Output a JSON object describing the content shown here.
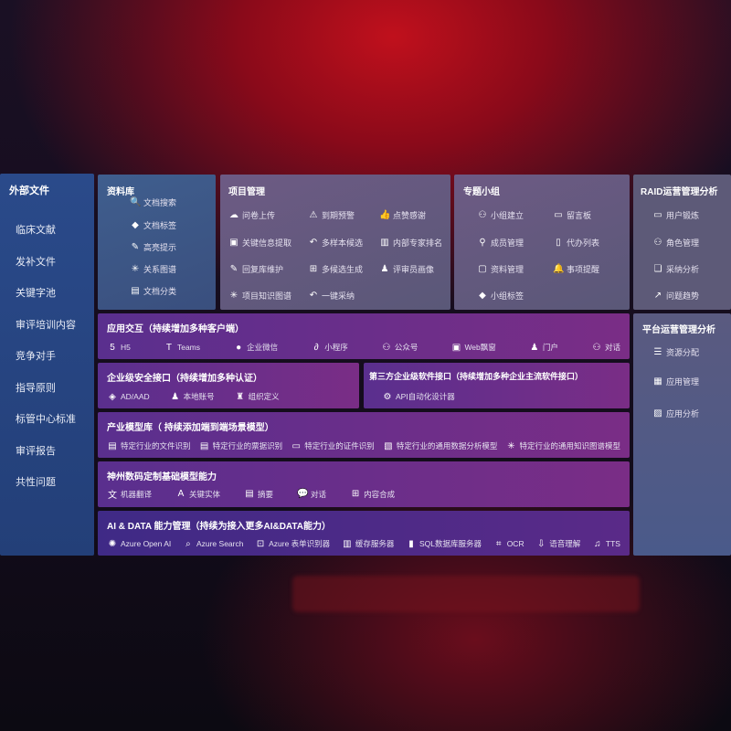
{
  "sidebar": {
    "title": "外部文件",
    "items": [
      "临床文献",
      "发补文件",
      "关键字池",
      "审评培训内容",
      "竞争对手",
      "指导原则",
      "标管中心标准",
      "审评报告",
      "共性问题"
    ]
  },
  "library": {
    "title": "资料库",
    "items": [
      {
        "icon": "file-search-icon",
        "label": "文档搜索"
      },
      {
        "icon": "tag-icon",
        "label": "文档标签"
      },
      {
        "icon": "pen-icon",
        "label": "高亮提示"
      },
      {
        "icon": "graph-icon",
        "label": "关系图谱"
      },
      {
        "icon": "document-icon",
        "label": "文档分类"
      }
    ]
  },
  "project": {
    "title": "项目管理",
    "items": [
      {
        "icon": "cloud-upload-icon",
        "label": "问卷上传"
      },
      {
        "icon": "alarm-icon",
        "label": "到期预警"
      },
      {
        "icon": "thumbs-up-icon",
        "label": "点赞感谢"
      },
      {
        "icon": "window-icon",
        "label": "关键信息提取"
      },
      {
        "icon": "reply-icon",
        "label": "多样本候选"
      },
      {
        "icon": "ranking-icon",
        "label": "内部专家排名"
      },
      {
        "icon": "pen-icon",
        "label": "回复库维护"
      },
      {
        "icon": "puzzle-icon",
        "label": "多候选生成"
      },
      {
        "icon": "user-icon",
        "label": "评审员画像"
      },
      {
        "icon": "graph-icon",
        "label": "项目知识图谱"
      },
      {
        "icon": "reply-icon",
        "label": "一键采纳"
      }
    ]
  },
  "group": {
    "title": "专题小组",
    "items": [
      {
        "icon": "group-icon",
        "label": "小组建立"
      },
      {
        "icon": "bbs-icon",
        "label": "留言板"
      },
      {
        "icon": "add-user-icon",
        "label": "成员管理"
      },
      {
        "icon": "clipboard-icon",
        "label": "代办列表"
      },
      {
        "icon": "folder-icon",
        "label": "资料管理"
      },
      {
        "icon": "bell-icon",
        "label": "事项提醒"
      },
      {
        "icon": "tag-icon",
        "label": "小组标签"
      }
    ]
  },
  "raid": {
    "title": "RAID运营管理分析",
    "items": [
      {
        "icon": "id-card-icon",
        "label": "用户锻炼"
      },
      {
        "icon": "group-icon",
        "label": "角色管理"
      },
      {
        "icon": "qa-icon",
        "label": "采纳分析"
      },
      {
        "icon": "trend-icon",
        "label": "问题趋势"
      }
    ]
  },
  "platform": {
    "title": "平台运营管理分析",
    "items": [
      {
        "icon": "list-icon",
        "label": "资源分配"
      },
      {
        "icon": "apps-icon",
        "label": "应用管理"
      },
      {
        "icon": "chart-icon",
        "label": "应用分析"
      }
    ]
  },
  "app": {
    "title": "应用交互（持续增加多种客户端）",
    "items": [
      {
        "icon": "html5-icon",
        "label": "H5"
      },
      {
        "icon": "teams-icon",
        "label": "Teams"
      },
      {
        "icon": "wechat-icon",
        "label": "企业微信"
      },
      {
        "icon": "miniprogram-icon",
        "label": "小程序"
      },
      {
        "icon": "group-icon",
        "label": "公众号"
      },
      {
        "icon": "window-icon",
        "label": "Web飘窗"
      },
      {
        "icon": "user-icon",
        "label": "门户"
      },
      {
        "icon": "chat-users-icon",
        "label": "对话"
      }
    ]
  },
  "security": {
    "title": "企业级安全接口（持续增加多种认证）",
    "items": [
      {
        "icon": "diamond-icon",
        "label": "AD/AAD"
      },
      {
        "icon": "user-icon",
        "label": "本地账号"
      },
      {
        "icon": "org-icon",
        "label": "组织定义"
      }
    ]
  },
  "thirdparty": {
    "title": "第三方企业级软件接口（持续增加多种企业主流软件接口）",
    "items": [
      {
        "icon": "gear-icon",
        "label": "API自动化设计器"
      }
    ]
  },
  "industry": {
    "title": "产业模型库（ 持续添加端到端场景模型）",
    "items": [
      {
        "icon": "file-icon",
        "label": "特定行业的文件识别"
      },
      {
        "icon": "receipt-icon",
        "label": "特定行业的票据识别"
      },
      {
        "icon": "id-card-icon",
        "label": "特定行业的证件识别"
      },
      {
        "icon": "image-icon",
        "label": "特定行业的通用数据分析模型"
      },
      {
        "icon": "graph-icon",
        "label": "特定行业的通用知识图谱模型"
      }
    ]
  },
  "base": {
    "title": "神州数码定制基础模型能力",
    "items": [
      {
        "icon": "translate-icon",
        "label": "机器翻译"
      },
      {
        "icon": "entity-icon",
        "label": "关键实体"
      },
      {
        "icon": "document-icon",
        "label": "摘要"
      },
      {
        "icon": "chat-icon",
        "label": "对话"
      },
      {
        "icon": "puzzle-icon",
        "label": "内容合成"
      }
    ]
  },
  "ai": {
    "title": "AI & DATA 能力管理（持续为接入更多AI&DATA能力）",
    "items": [
      {
        "icon": "openai-icon",
        "label": "Azure Open AI"
      },
      {
        "icon": "search-icon",
        "label": "Azure Search"
      },
      {
        "icon": "form-icon",
        "label": "Azure 表单识别器"
      },
      {
        "icon": "server-icon",
        "label": "缓存服务器"
      },
      {
        "icon": "database-icon",
        "label": "SQL数据库服务器"
      },
      {
        "icon": "ocr-icon",
        "label": "OCR"
      },
      {
        "icon": "speech-icon",
        "label": "语音理解"
      },
      {
        "icon": "tts-icon",
        "label": "TTS"
      }
    ]
  }
}
